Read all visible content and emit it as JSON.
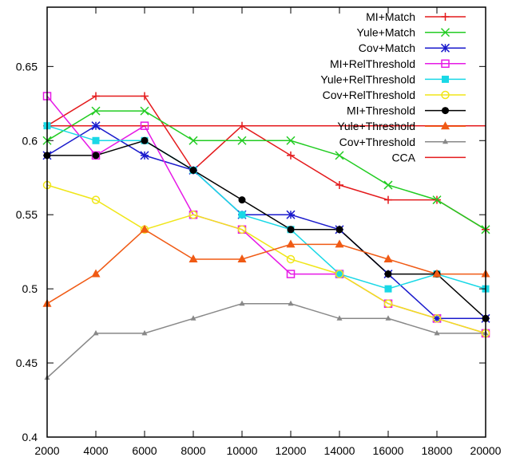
{
  "chart_data": {
    "type": "line",
    "x": [
      2000,
      4000,
      6000,
      8000,
      10000,
      12000,
      14000,
      16000,
      18000,
      20000
    ],
    "xlim": [
      2000,
      20000
    ],
    "ylim": [
      0.4,
      0.69
    ],
    "xticks": [
      2000,
      4000,
      6000,
      8000,
      10000,
      12000,
      14000,
      16000,
      18000,
      20000
    ],
    "yticks": [
      0.4,
      0.45,
      0.5,
      0.55,
      0.6,
      0.65
    ],
    "ytick_labels": [
      "0.4",
      "0.45",
      "0.5",
      "0.55",
      "0.6",
      "0.65"
    ],
    "grid": false,
    "legend_position": "top-right",
    "series": [
      {
        "name": "MI+Match",
        "color": "#e41a1c",
        "marker": "plus",
        "values": [
          0.61,
          0.63,
          0.63,
          0.58,
          0.61,
          0.59,
          0.57,
          0.56,
          0.56,
          0.54
        ]
      },
      {
        "name": "Yule+Match",
        "color": "#22cc22",
        "marker": "cross",
        "values": [
          0.6,
          0.62,
          0.62,
          0.6,
          0.6,
          0.6,
          0.59,
          0.57,
          0.56,
          0.54
        ]
      },
      {
        "name": "Cov+Match",
        "color": "#1a1acc",
        "marker": "star",
        "values": [
          0.59,
          0.61,
          0.59,
          0.58,
          0.55,
          0.55,
          0.54,
          0.51,
          0.48,
          0.48
        ]
      },
      {
        "name": "MI+RelThreshold",
        "color": "#e619e6",
        "marker": "open-square",
        "values": [
          0.63,
          0.59,
          0.61,
          0.55,
          0.54,
          0.51,
          0.51,
          0.49,
          0.48,
          0.47
        ]
      },
      {
        "name": "Yule+RelThreshold",
        "color": "#19d8e6",
        "marker": "filled-square",
        "values": [
          0.61,
          0.6,
          0.6,
          0.58,
          0.55,
          0.54,
          0.51,
          0.5,
          0.51,
          0.5
        ]
      },
      {
        "name": "Cov+RelThreshold",
        "color": "#f0e619",
        "marker": "open-circle",
        "values": [
          0.57,
          0.56,
          0.54,
          0.55,
          0.54,
          0.52,
          0.51,
          0.49,
          0.48,
          0.47
        ]
      },
      {
        "name": "MI+Threshold",
        "color": "#000000",
        "marker": "filled-circle",
        "values": [
          0.59,
          0.59,
          0.6,
          0.58,
          0.56,
          0.54,
          0.54,
          0.51,
          0.51,
          0.48
        ]
      },
      {
        "name": "Yule+Threshold",
        "color": "#f05a14",
        "marker": "filled-triangle",
        "values": [
          0.49,
          0.51,
          0.54,
          0.52,
          0.52,
          0.53,
          0.53,
          0.52,
          0.51,
          0.51
        ]
      },
      {
        "name": "Cov+Threshold",
        "color": "#888888",
        "marker": "small-triangle",
        "values": [
          0.44,
          0.47,
          0.47,
          0.48,
          0.49,
          0.49,
          0.48,
          0.48,
          0.47,
          0.47
        ]
      },
      {
        "name": "CCA",
        "color": "#e41a1c",
        "marker": "none",
        "values": [
          0.61,
          0.61,
          0.61,
          0.61,
          0.61,
          0.61,
          0.61,
          0.61,
          0.61,
          0.61
        ]
      }
    ]
  }
}
